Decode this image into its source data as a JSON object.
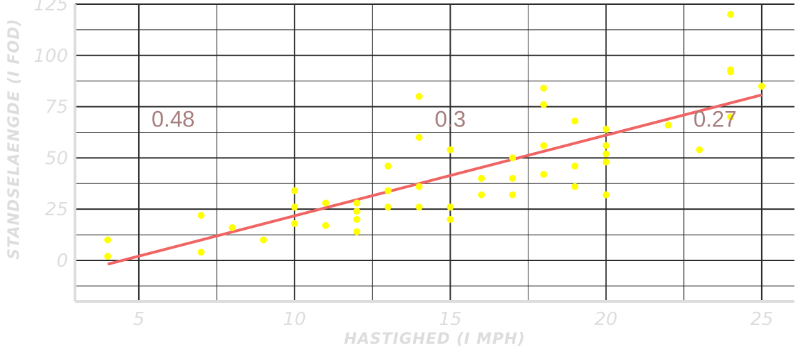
{
  "chart_data": {
    "type": "scatter",
    "xlabel": "HASTIGHED (I MPH)",
    "ylabel": "STANDSELAENGDE (I FOD)",
    "xlim": [
      2.95,
      26.05
    ],
    "ylim": [
      -20,
      125
    ],
    "x_ticks": [
      "5",
      "10",
      "15",
      "20",
      "25"
    ],
    "y_ticks": [
      "0",
      "25",
      "50",
      "75",
      "100",
      "125"
    ],
    "x_tick_values": [
      5,
      10,
      15,
      20,
      25
    ],
    "y_tick_values": [
      0,
      25,
      50,
      75,
      100,
      125
    ],
    "grid": true,
    "series": [
      {
        "x": [
          4,
          4,
          7,
          7,
          8,
          9,
          10,
          10,
          10,
          11,
          11,
          12,
          12,
          12,
          12,
          13,
          13,
          13,
          13,
          14,
          14,
          14,
          14,
          15,
          15,
          15,
          16,
          16,
          17,
          17,
          17,
          18,
          18,
          18,
          18,
          19,
          19,
          19,
          20,
          20,
          20,
          20,
          20,
          22,
          23,
          24,
          24,
          24,
          24,
          25
        ],
        "y": [
          2,
          10,
          4,
          22,
          16,
          10,
          18,
          26,
          34,
          17,
          28,
          14,
          20,
          24,
          28,
          26,
          34,
          34,
          46,
          26,
          36,
          60,
          80,
          20,
          26,
          54,
          32,
          40,
          32,
          40,
          50,
          42,
          56,
          76,
          84,
          36,
          46,
          68,
          32,
          48,
          52,
          56,
          64,
          66,
          54,
          70,
          92,
          93,
          120,
          85
        ],
        "color": "#ffff00"
      }
    ],
    "trend_line": {
      "x": [
        4,
        25
      ],
      "y": [
        -1.85,
        80.73
      ],
      "color": "#f06464"
    },
    "annotations": [
      {
        "text": "0.48",
        "x": 6.1,
        "y": 70
      },
      {
        "text": "0.3",
        "x": 15,
        "y": 70
      },
      {
        "text": "0.27",
        "x": 23.5,
        "y": 70
      }
    ],
    "colors": {
      "points": "#ffff00",
      "trend": "#f06464",
      "grid": "#2b2b2b",
      "axis": "#dddddd",
      "annotation": "#a77e7e"
    }
  }
}
